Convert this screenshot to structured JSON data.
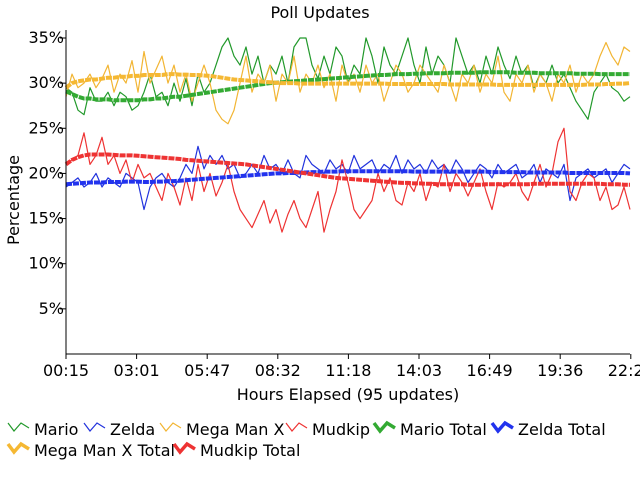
{
  "chart_data": {
    "type": "line",
    "title": "Poll Updates",
    "xlabel": "Hours Elapsed (95 updates)",
    "ylabel": "Percentage",
    "x_tick_labels": [
      "00:15",
      "03:01",
      "05:47",
      "08:32",
      "11:18",
      "14:03",
      "16:49",
      "19:36",
      "22:22"
    ],
    "y_tick_labels": [
      "5%",
      "10%",
      "15%",
      "20%",
      "25%",
      "30%",
      "35%"
    ],
    "y_ticks": [
      5,
      10,
      15,
      20,
      25,
      30,
      35
    ],
    "ylim": [
      0,
      35
    ],
    "n_updates": 95,
    "grid": false,
    "legend_position": "bottom",
    "series": [
      {
        "name": "Mario",
        "color": "#22992b",
        "kind": "update",
        "values": [
          29.5,
          29,
          27,
          26.5,
          29.5,
          28,
          28,
          29,
          27.5,
          29,
          28.5,
          27,
          27.5,
          29,
          31,
          28.5,
          29,
          27.5,
          30,
          28,
          30.5,
          27.5,
          31,
          29,
          30,
          32,
          34,
          35,
          33,
          32,
          34,
          31,
          33,
          30,
          32,
          31,
          33,
          30,
          34,
          35,
          35,
          32,
          30.5,
          33,
          31,
          34,
          33,
          30,
          32,
          31,
          35,
          33,
          30,
          34,
          32,
          31,
          33,
          35,
          32,
          30,
          34,
          31,
          33,
          32,
          30,
          35,
          33,
          31,
          32,
          30,
          33,
          31,
          34,
          32,
          30.5,
          33,
          31,
          32,
          29.5,
          31,
          30,
          32,
          30,
          31,
          29.5,
          28,
          27,
          26,
          29,
          30,
          31,
          29.5,
          29,
          28,
          28.5
        ]
      },
      {
        "name": "Zelda",
        "color": "#2233dd",
        "kind": "update",
        "values": [
          18.5,
          19,
          19.5,
          18.5,
          19,
          20,
          18.5,
          19.5,
          19,
          18.5,
          20,
          19.5,
          19,
          16,
          18.5,
          19.5,
          20,
          19,
          18.5,
          19.5,
          21,
          20,
          23,
          20.5,
          22,
          21,
          22,
          20.5,
          21,
          19.5,
          20,
          21,
          20,
          22,
          20.5,
          21,
          20,
          21.5,
          20,
          19.5,
          22,
          21,
          20.5,
          20,
          21.5,
          20.5,
          21,
          20,
          22,
          20.5,
          21,
          21.5,
          20,
          21,
          20.5,
          22,
          20,
          21.5,
          20.5,
          21,
          20,
          21.5,
          20.5,
          21,
          20,
          21.5,
          20.5,
          19,
          20,
          21,
          20.5,
          19.5,
          21,
          20,
          20.5,
          21,
          19.5,
          20,
          21,
          19,
          20.5,
          20,
          19.5,
          21,
          17,
          19.5,
          20,
          20.5,
          19.5,
          20,
          20.5,
          19,
          20,
          21,
          20.5
        ]
      },
      {
        "name": "Mega Man X",
        "color": "#f2b533",
        "kind": "update",
        "values": [
          28.5,
          31,
          29.5,
          30,
          31,
          29.5,
          30.5,
          32,
          29,
          31,
          30,
          32.5,
          29,
          33.5,
          30,
          31.5,
          33,
          30,
          32,
          29,
          31,
          28,
          30,
          32,
          30,
          27,
          26,
          25.5,
          27,
          30,
          33,
          29,
          31,
          30,
          32,
          28,
          31,
          30,
          33,
          29,
          31,
          30,
          32,
          29.5,
          31,
          28,
          32,
          30,
          31,
          29,
          32,
          30,
          31,
          28,
          30,
          32,
          31,
          29,
          30,
          32,
          31,
          30,
          29,
          32,
          30,
          28,
          31,
          30,
          32,
          29,
          31,
          30,
          33,
          29,
          28,
          31,
          30,
          32,
          29,
          31,
          30,
          28,
          31,
          30,
          32,
          29,
          31,
          30,
          31,
          33,
          34.5,
          33,
          32,
          34,
          33.5
        ]
      },
      {
        "name": "Mudkip",
        "color": "#ee3333",
        "kind": "update",
        "values": [
          21,
          21.5,
          22,
          24.5,
          21,
          22,
          24,
          21,
          22,
          20,
          21.5,
          19,
          21,
          19.5,
          20,
          18.5,
          17,
          20,
          18.5,
          16.5,
          19.5,
          17,
          21,
          18,
          20,
          17.5,
          19,
          21,
          18,
          16,
          15,
          14,
          15.5,
          17,
          14.5,
          16,
          13.5,
          15.5,
          17,
          15,
          14,
          16,
          18,
          13.5,
          16,
          18,
          21.5,
          19,
          16,
          15,
          16,
          17,
          20,
          18,
          19.5,
          17,
          16.5,
          19,
          18,
          20,
          17,
          19,
          18.5,
          21,
          18,
          20,
          19,
          17.5,
          19,
          20.5,
          18,
          16,
          19,
          18.5,
          19,
          20,
          18,
          17,
          19,
          21,
          18.5,
          20,
          23.5,
          25,
          18,
          17,
          19,
          20,
          19.5,
          17,
          18.5,
          16,
          16.5,
          18.5,
          16
        ]
      },
      {
        "name": "Mario Total",
        "color": "#33aa33",
        "kind": "total",
        "values": [
          29.1,
          28.8,
          28.5,
          28.3,
          28.3,
          28.2,
          28.2,
          28.2,
          28.1,
          28.1,
          28.1,
          28.1,
          28.1,
          28.2,
          28.2,
          28.3,
          28.3,
          28.4,
          28.5,
          28.5,
          28.6,
          28.7,
          28.8,
          28.9,
          29,
          29.1,
          29.2,
          29.3,
          29.4,
          29.5,
          29.6,
          29.7,
          29.8,
          29.9,
          30,
          30.05,
          30.1,
          30.15,
          30.2,
          30.25,
          30.3,
          30.35,
          30.4,
          30.45,
          30.5,
          30.55,
          30.6,
          30.65,
          30.7,
          30.75,
          30.8,
          30.85,
          30.9,
          30.9,
          30.95,
          31,
          31,
          31,
          31.05,
          31.05,
          31.1,
          31.1,
          31.1,
          31.1,
          31.15,
          31.15,
          31.15,
          31.15,
          31.15,
          31.2,
          31.2,
          31.2,
          31.2,
          31.2,
          31.2,
          31.15,
          31.15,
          31.15,
          31.15,
          31.1,
          31.1,
          31.1,
          31.1,
          31.1,
          31.1,
          31.05,
          31.05,
          31.05,
          31.05,
          31,
          31,
          31,
          31,
          31,
          31
        ]
      },
      {
        "name": "Zelda Total",
        "color": "#2233ee",
        "kind": "total",
        "values": [
          18.8,
          18.85,
          18.9,
          18.95,
          19,
          19,
          19,
          19.05,
          19.05,
          19.05,
          19.1,
          19.1,
          19.1,
          19.05,
          19.05,
          19.1,
          19.1,
          19.15,
          19.15,
          19.2,
          19.25,
          19.3,
          19.35,
          19.4,
          19.45,
          19.5,
          19.55,
          19.6,
          19.65,
          19.7,
          19.75,
          19.8,
          19.85,
          19.9,
          19.95,
          20,
          20,
          20.05,
          20.05,
          20.1,
          20.1,
          20.15,
          20.15,
          20.2,
          20.2,
          20.2,
          20.25,
          20.25,
          20.25,
          20.25,
          20.25,
          20.25,
          20.25,
          20.25,
          20.25,
          20.25,
          20.25,
          20.25,
          20.2,
          20.2,
          20.2,
          20.2,
          20.2,
          20.2,
          20.2,
          20.2,
          20.2,
          20.2,
          20.2,
          20.2,
          20.2,
          20.15,
          20.15,
          20.15,
          20.15,
          20.15,
          20.15,
          20.1,
          20.1,
          20.1,
          20.1,
          20.1,
          20.1,
          20.1,
          20.05,
          20.05,
          20.05,
          20.05,
          20.05,
          20.05,
          20.05,
          20.05,
          20.05,
          20.05,
          20
        ]
      },
      {
        "name": "Mega Man X Total",
        "color": "#f5b833",
        "kind": "total",
        "values": [
          29.5,
          30,
          30.2,
          30.3,
          30.4,
          30.4,
          30.5,
          30.6,
          30.6,
          30.7,
          30.7,
          30.8,
          30.8,
          30.9,
          30.9,
          30.9,
          30.9,
          31,
          31,
          30.95,
          30.95,
          30.9,
          30.9,
          30.85,
          30.8,
          30.7,
          30.6,
          30.5,
          30.4,
          30.35,
          30.3,
          30.25,
          30.2,
          30.15,
          30.1,
          30.05,
          30,
          30,
          30,
          29.95,
          29.95,
          29.95,
          29.95,
          29.95,
          29.95,
          29.95,
          29.95,
          29.95,
          29.95,
          29.95,
          29.95,
          29.95,
          29.95,
          29.95,
          29.9,
          29.9,
          29.9,
          29.9,
          29.9,
          29.9,
          29.9,
          29.9,
          29.9,
          29.9,
          29.85,
          29.85,
          29.85,
          29.85,
          29.85,
          29.85,
          29.85,
          29.85,
          29.8,
          29.8,
          29.8,
          29.8,
          29.8,
          29.8,
          29.8,
          29.8,
          29.8,
          29.8,
          29.8,
          29.8,
          29.8,
          29.8,
          29.8,
          29.85,
          29.85,
          29.85,
          29.9,
          29.9,
          29.95,
          29.95,
          30
        ]
      },
      {
        "name": "Mudkip Total",
        "color": "#ee3333",
        "kind": "total",
        "values": [
          21,
          21.5,
          21.8,
          22,
          22.1,
          22.1,
          22.1,
          22.1,
          22.05,
          22,
          22,
          22,
          21.95,
          21.9,
          21.85,
          21.8,
          21.75,
          21.7,
          21.65,
          21.6,
          21.5,
          21.45,
          21.4,
          21.35,
          21.3,
          21.25,
          21.2,
          21.15,
          21.1,
          21.05,
          21,
          20.9,
          20.8,
          20.7,
          20.6,
          20.5,
          20.4,
          20.3,
          20.2,
          20.1,
          20,
          19.9,
          19.8,
          19.7,
          19.6,
          19.5,
          19.45,
          19.4,
          19.35,
          19.3,
          19.25,
          19.2,
          19.15,
          19.1,
          19.05,
          19,
          18.95,
          18.95,
          18.9,
          18.9,
          18.85,
          18.85,
          18.8,
          18.8,
          18.8,
          18.8,
          18.8,
          18.75,
          18.75,
          18.75,
          18.8,
          18.8,
          18.8,
          18.8,
          18.8,
          18.8,
          18.8,
          18.8,
          18.85,
          18.85,
          18.85,
          18.85,
          18.85,
          18.85,
          18.85,
          18.85,
          18.85,
          18.85,
          18.85,
          18.85,
          18.8,
          18.8,
          18.8,
          18.75,
          18.75
        ]
      }
    ]
  }
}
